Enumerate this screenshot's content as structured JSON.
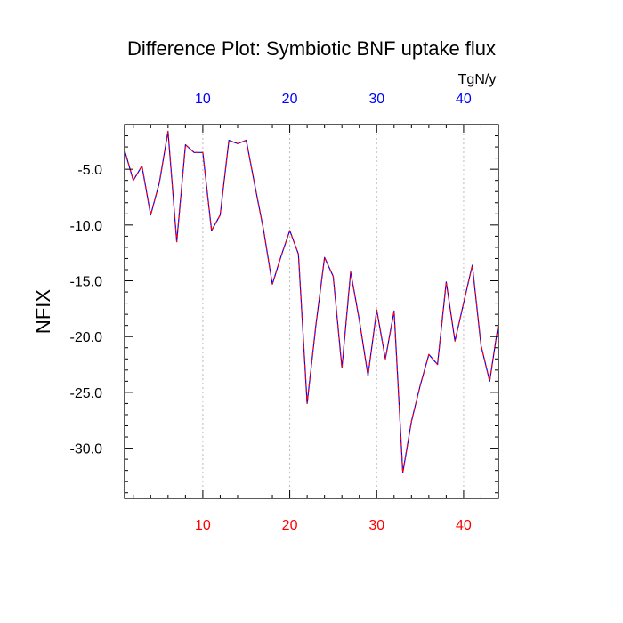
{
  "chart_data": {
    "type": "line",
    "title": "Difference Plot: Symbiotic BNF uptake flux",
    "units": "TgN/y",
    "ylabel": "NFIX",
    "xlim": [
      1,
      44
    ],
    "ylim": [
      -34.5,
      -1
    ],
    "x_ticks_bottom": [
      "10",
      "20",
      "30",
      "40"
    ],
    "x_ticks_top": [
      "10",
      "20",
      "30",
      "40"
    ],
    "y_ticks": [
      "-5.0",
      "-10.0",
      "-15.0",
      "-20.0",
      "-25.0",
      "-30.0"
    ],
    "grid": "vertical dotted lines at major x ticks",
    "colors": {
      "series_line_1": "#0000ff",
      "series_line_2": "#ff0000",
      "bottom_tick_labels": "#ff0000",
      "top_tick_labels": "#0000ff",
      "axis": "#000000",
      "grid": "#bbbbbb"
    },
    "series": [
      {
        "x": [
          1,
          2,
          3,
          4,
          5,
          6,
          7,
          8,
          9,
          10,
          11,
          12,
          13,
          14,
          15,
          16,
          17,
          18,
          19,
          20,
          21,
          22,
          23,
          24,
          25,
          26,
          27,
          28,
          29,
          30,
          31,
          32,
          33,
          34,
          35,
          36,
          37,
          38,
          39,
          40,
          41,
          42,
          43,
          44
        ],
        "values": [
          -3.3,
          -6.0,
          -4.7,
          -9.1,
          -6.2,
          -1.6,
          -11.5,
          -2.8,
          -3.5,
          -3.5,
          -10.5,
          -9.1,
          -2.4,
          -2.7,
          -2.4,
          -6.5,
          -10.5,
          -15.3,
          -12.8,
          -10.5,
          -12.6,
          -26.0,
          -19.0,
          -12.9,
          -14.6,
          -22.8,
          -14.2,
          -18.5,
          -23.5,
          -17.6,
          -22.0,
          -17.7,
          -32.2,
          -27.6,
          -24.4,
          -21.6,
          -22.5,
          -15.1,
          -20.4,
          -17.0,
          -13.6,
          -20.8,
          -24.0,
          -18.8
        ]
      }
    ]
  }
}
